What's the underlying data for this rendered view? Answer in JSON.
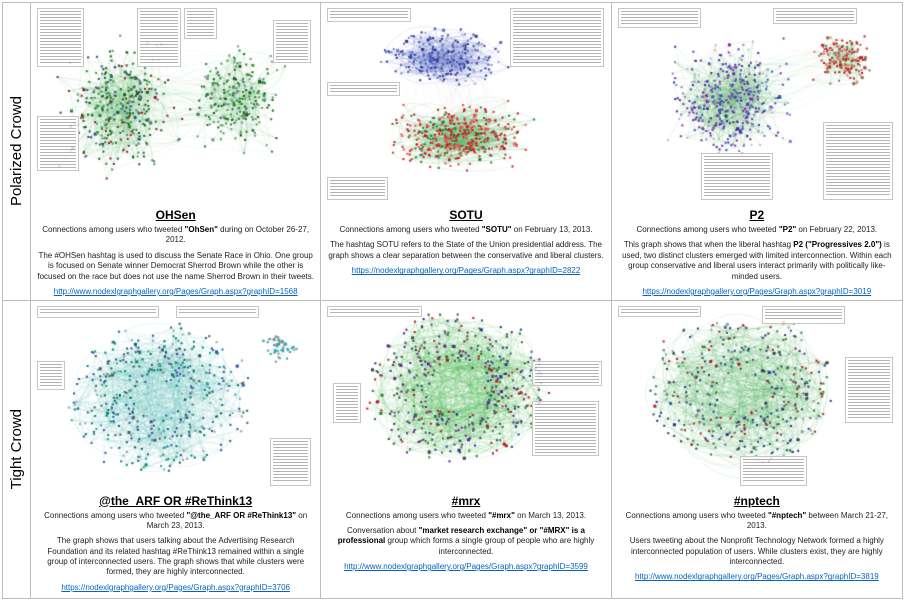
{
  "rows": [
    {
      "label": "Polarized Crowd",
      "cells": [
        {
          "title": "OHSen",
          "caption_pre": "Connections among users who tweeted ",
          "caption_term": "\"OhSen\"",
          "caption_post": " during on October 26-27, 2012.",
          "description": [
            {
              "t": "The #OHSen hashtag is used to discuss the Senate Race in Ohio. One group is focused on Senate winner Democrat Sherrod Brown while the other is focused on the race but does not use the name Sherrod Brown in their tweets.",
              "b": false
            }
          ],
          "link": "http://www.nodexlgraphgallery.org/Pages/Graph.aspx?graphID=1568",
          "graph": {
            "seed": 11,
            "clusters": [
              {
                "x": 0.3,
                "y": 0.52,
                "rx": 0.26,
                "ry": 0.4,
                "n": 330,
                "colors": [
                  "#1b5e20",
                  "#2e7d32",
                  "#43a047",
                  "#1b5e20",
                  "#607d8b",
                  "#8e2020",
                  "#274e9e"
                ],
                "edges": 430,
                "edge_color": "#3aa845",
                "edge_alpha": 0.2,
                "curve": 0.6
              },
              {
                "x": 0.72,
                "y": 0.47,
                "rx": 0.21,
                "ry": 0.34,
                "n": 230,
                "colors": [
                  "#1b5e20",
                  "#2e7d32",
                  "#43a047",
                  "#78909c"
                ],
                "edges": 280,
                "edge_color": "#3aa845",
                "edge_alpha": 0.2,
                "curve": 0.6
              }
            ],
            "cross_edges": [
              {
                "a": 0,
                "b": 1,
                "n": 70,
                "color": "#3aa845",
                "alpha": 0.1
              }
            ],
            "annotations": [
              {
                "x": 0.0,
                "y": 0.0,
                "w": 0.17,
                "h": 0.3
              },
              {
                "x": 0.36,
                "y": 0.0,
                "w": 0.16,
                "h": 0.3
              },
              {
                "x": 0.53,
                "y": 0.0,
                "w": 0.12,
                "h": 0.16
              },
              {
                "x": 0.85,
                "y": 0.06,
                "w": 0.14,
                "h": 0.22
              },
              {
                "x": 0.0,
                "y": 0.55,
                "w": 0.15,
                "h": 0.28
              }
            ]
          }
        },
        {
          "title": "SOTU",
          "caption_pre": "Connections among users who tweeted ",
          "caption_term": "\"SOTU\"",
          "caption_post": " on February 13, 2013.",
          "description": [
            {
              "t": "The hashtag SOTU refers to the State of the Union presidential address. The graph shows a clear separation between the conservative and liberal clusters.",
              "b": false
            }
          ],
          "link": "https://nodexlgraphgallery.org/Pages/Graph.aspx?graphID=2822",
          "graph": {
            "seed": 22,
            "clusters": [
              {
                "x": 0.42,
                "y": 0.25,
                "rx": 0.26,
                "ry": 0.17,
                "n": 300,
                "colors": [
                  "#283593",
                  "#3949ab",
                  "#5c6bc0",
                  "#7986cb",
                  "#9fa8da"
                ],
                "edges": 420,
                "edge_color": "#6674c4",
                "edge_alpha": 0.28,
                "curve": 0.8
              },
              {
                "x": 0.48,
                "y": 0.66,
                "rx": 0.31,
                "ry": 0.2,
                "n": 400,
                "colors": [
                  "#b71c1c",
                  "#c62828",
                  "#e53935",
                  "#ef5350",
                  "#2e7d32"
                ],
                "edges": 560,
                "edge_color": "#3aa845",
                "edge_alpha": 0.22,
                "curve": 0.8
              }
            ],
            "cross_edges": [
              {
                "a": 0,
                "b": 1,
                "n": 36,
                "color": "#9e9e9e",
                "alpha": 0.1
              }
            ],
            "annotations": [
              {
                "x": 0.0,
                "y": 0.0,
                "w": 0.3,
                "h": 0.07
              },
              {
                "x": 0.66,
                "y": 0.0,
                "w": 0.34,
                "h": 0.3
              },
              {
                "x": 0.0,
                "y": 0.38,
                "w": 0.26,
                "h": 0.07
              },
              {
                "x": 0.0,
                "y": 0.86,
                "w": 0.22,
                "h": 0.12
              }
            ]
          }
        },
        {
          "title": "P2",
          "caption_pre": "Connections among users who tweeted ",
          "caption_term": "\"P2\"",
          "caption_post": " on February 22, 2013.",
          "description": [
            {
              "t": "This graph shows that when the liberal hashtag ",
              "b": false
            },
            {
              "t": "P2 (\"Progressives 2.0\")",
              "b": true
            },
            {
              "t": " is used, two distinct clusters emerged with limited interconnection.  Within each group conservative and liberal users interact primarily with politically like-minded users.",
              "b": false
            }
          ],
          "link": "https://nodexlgraphgallery.org/Pages/Graph.aspx?graphID=3019",
          "graph": {
            "seed": 33,
            "clusters": [
              {
                "x": 0.4,
                "y": 0.48,
                "rx": 0.27,
                "ry": 0.36,
                "n": 430,
                "colors": [
                  "#283593",
                  "#3f51b5",
                  "#5e35b1",
                  "#7986cb",
                  "#b0bec5",
                  "#8e24aa"
                ],
                "edges": 560,
                "edge_color": "#3aa845",
                "edge_alpha": 0.2,
                "curve": 0.7
              },
              {
                "x": 0.81,
                "y": 0.26,
                "rx": 0.13,
                "ry": 0.15,
                "n": 160,
                "colors": [
                  "#b71c1c",
                  "#c62828",
                  "#e57373",
                  "#8d6e63"
                ],
                "edges": 220,
                "edge_color": "#62b86a",
                "edge_alpha": 0.24,
                "curve": 0.7
              }
            ],
            "cross_edges": [
              {
                "a": 0,
                "b": 1,
                "n": 26,
                "color": "#3aa845",
                "alpha": 0.1
              }
            ],
            "annotations": [
              {
                "x": 0.0,
                "y": 0.0,
                "w": 0.3,
                "h": 0.1
              },
              {
                "x": 0.56,
                "y": 0.0,
                "w": 0.3,
                "h": 0.08
              },
              {
                "x": 0.3,
                "y": 0.74,
                "w": 0.26,
                "h": 0.24
              },
              {
                "x": 0.74,
                "y": 0.58,
                "w": 0.25,
                "h": 0.4
              }
            ]
          }
        }
      ]
    },
    {
      "label": "Tight Crowd",
      "cells": [
        {
          "title": "@the_ARF OR #ReThink13",
          "caption_pre": "Connections among users who tweeted ",
          "caption_term": "\"@the_ARF OR #ReThink13\"",
          "caption_post": " on March 23, 2013.",
          "description": [
            {
              "t": "The graph shows that users talking about the Advertising Research Foundation and its related hashtag #ReThink13 remained within a single group of interconnected users. The graph shows that while clusters were formed, they are highly interconnected.",
              "b": false
            }
          ],
          "link": "https://nodexlgraphgallery.org/Pages/Graph.aspx?graphID=3706",
          "graph": {
            "seed": 44,
            "clusters": [
              {
                "x": 0.44,
                "y": 0.5,
                "rx": 0.33,
                "ry": 0.4,
                "ring": 0.3,
                "n": 430,
                "colors": [
                  "#00695c",
                  "#00897b",
                  "#26a69a",
                  "#3949ab",
                  "#90a4ae",
                  "#455a64"
                ],
                "edges": 640,
                "edge_color": "#53b9ae",
                "edge_alpha": 0.26,
                "curve": 1.0
              },
              {
                "x": 0.88,
                "y": 0.22,
                "rx": 0.08,
                "ry": 0.1,
                "n": 50,
                "colors": [
                  "#78909c",
                  "#26a69a"
                ],
                "edges": 50,
                "edge_color": "#90caf9",
                "edge_alpha": 0.25,
                "curve": 0.5
              }
            ],
            "cross_edges": [],
            "annotations": [
              {
                "x": 0.0,
                "y": 0.0,
                "w": 0.44,
                "h": 0.07
              },
              {
                "x": 0.5,
                "y": 0.0,
                "w": 0.3,
                "h": 0.07
              },
              {
                "x": 0.0,
                "y": 0.3,
                "w": 0.1,
                "h": 0.16
              },
              {
                "x": 0.84,
                "y": 0.72,
                "w": 0.15,
                "h": 0.26
              }
            ]
          }
        },
        {
          "title": "#mrx",
          "caption_pre": "Connections among users who tweeted ",
          "caption_term": "\"#mrx\"",
          "caption_post": " on March 13, 2013.",
          "description": [
            {
              "t": "Conversation about ",
              "b": false
            },
            {
              "t": "\"market research exchange\" or \"#MRX\" is a professional",
              "b": true
            },
            {
              "t": " group which forms a single group of people who are highly interconnected.",
              "b": false
            }
          ],
          "link": "http://www.nodexlgraphgallery.org/Pages/Graph.aspx?graphID=3599",
          "graph": {
            "seed": 55,
            "clusters": [
              {
                "x": 0.47,
                "y": 0.45,
                "rx": 0.33,
                "ry": 0.4,
                "ring": 0.35,
                "n": 430,
                "colors": [
                  "#37474f",
                  "#455a64",
                  "#283593",
                  "#2e7d32",
                  "#b71c1c",
                  "#6a1b9a"
                ],
                "edges": 760,
                "edge_color": "#3fae49",
                "edge_alpha": 0.26,
                "curve": 1.1
              }
            ],
            "cross_edges": [],
            "annotations": [
              {
                "x": 0.0,
                "y": 0.0,
                "w": 0.34,
                "h": 0.06
              },
              {
                "x": 0.74,
                "y": 0.3,
                "w": 0.25,
                "h": 0.14
              },
              {
                "x": 0.74,
                "y": 0.52,
                "w": 0.24,
                "h": 0.3
              },
              {
                "x": 0.02,
                "y": 0.42,
                "w": 0.1,
                "h": 0.22
              }
            ]
          }
        },
        {
          "title": "#nptech",
          "caption_pre": "Connections among users who tweeted ",
          "caption_term": "\"#nptech\"",
          "caption_post": " between March 21-27, 2013.",
          "description": [
            {
              "t": "Users tweeting about the Nonprofit Technology Network formed a highly interconnected population of users.  While clusters exist, they are highly interconnected.",
              "b": false
            }
          ],
          "link": "http://www.nodexlgraphgallery.org/Pages/Graph.aspx?graphID=3819",
          "graph": {
            "seed": 66,
            "clusters": [
              {
                "x": 0.45,
                "y": 0.46,
                "rx": 0.34,
                "ry": 0.41,
                "ring": 0.3,
                "n": 400,
                "colors": [
                  "#37474f",
                  "#546e7a",
                  "#283593",
                  "#2e7d32",
                  "#90a4ae",
                  "#b71c1c"
                ],
                "edges": 660,
                "edge_color": "#3fae49",
                "edge_alpha": 0.24,
                "curve": 1.1
              }
            ],
            "cross_edges": [],
            "annotations": [
              {
                "x": 0.0,
                "y": 0.0,
                "w": 0.3,
                "h": 0.06
              },
              {
                "x": 0.52,
                "y": 0.0,
                "w": 0.3,
                "h": 0.1
              },
              {
                "x": 0.82,
                "y": 0.28,
                "w": 0.17,
                "h": 0.36
              },
              {
                "x": 0.44,
                "y": 0.82,
                "w": 0.24,
                "h": 0.16
              }
            ]
          }
        }
      ]
    }
  ]
}
